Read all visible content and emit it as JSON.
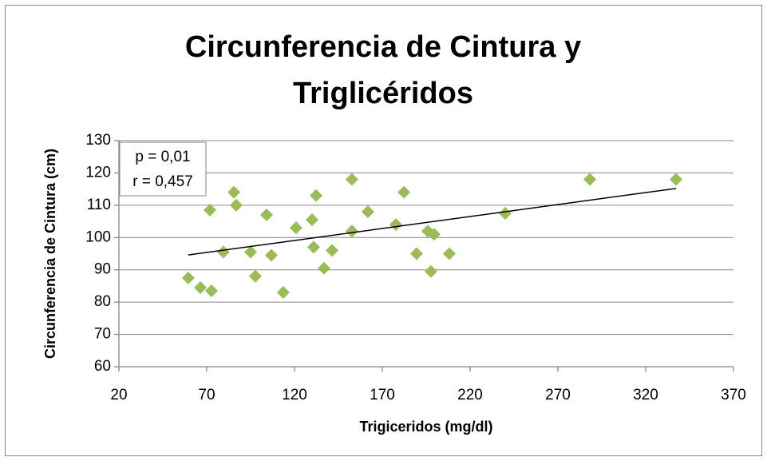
{
  "chart_data": {
    "type": "scatter",
    "title": "Circunferencia de Cintura y Triglicéridos",
    "xlabel": "Trigiceridos (mg/dl)",
    "ylabel": "Circunferencia de Cintura (cm)",
    "annotations": [
      "p = 0,01",
      "r = 0,457"
    ],
    "xlim": [
      20,
      370
    ],
    "xticks": [
      20,
      70,
      120,
      170,
      220,
      270,
      320,
      370
    ],
    "ylim": [
      60,
      130
    ],
    "yticks": [
      60,
      70,
      80,
      90,
      100,
      110,
      120,
      130
    ],
    "grid": true,
    "series": [
      {
        "color": "#9bbb59",
        "x": [
          59.5,
          66.4,
          72.7,
          71.8,
          79.5,
          85.5,
          86.8,
          95,
          97.7,
          104.1,
          106.8,
          113.6,
          120.9,
          130,
          130.9,
          132.3,
          136.8,
          141.4,
          152.7,
          152.7,
          161.8,
          177.7,
          182.3,
          189.5,
          195.9,
          199.5,
          197.7,
          208.2,
          240,
          288.2,
          337.3
        ],
        "values": [
          87.5,
          84.5,
          83.5,
          108.5,
          95.5,
          114,
          110,
          95.5,
          88,
          107,
          94.5,
          83,
          103,
          105.5,
          97,
          113,
          90.5,
          96,
          118,
          102,
          108,
          104,
          114,
          95,
          102,
          101,
          89.5,
          95,
          107.5,
          118,
          118
        ]
      }
    ],
    "trendline": {
      "color": "#000000",
      "x": [
        59.5,
        337.3
      ],
      "values": [
        94.6,
        115.2
      ]
    }
  }
}
